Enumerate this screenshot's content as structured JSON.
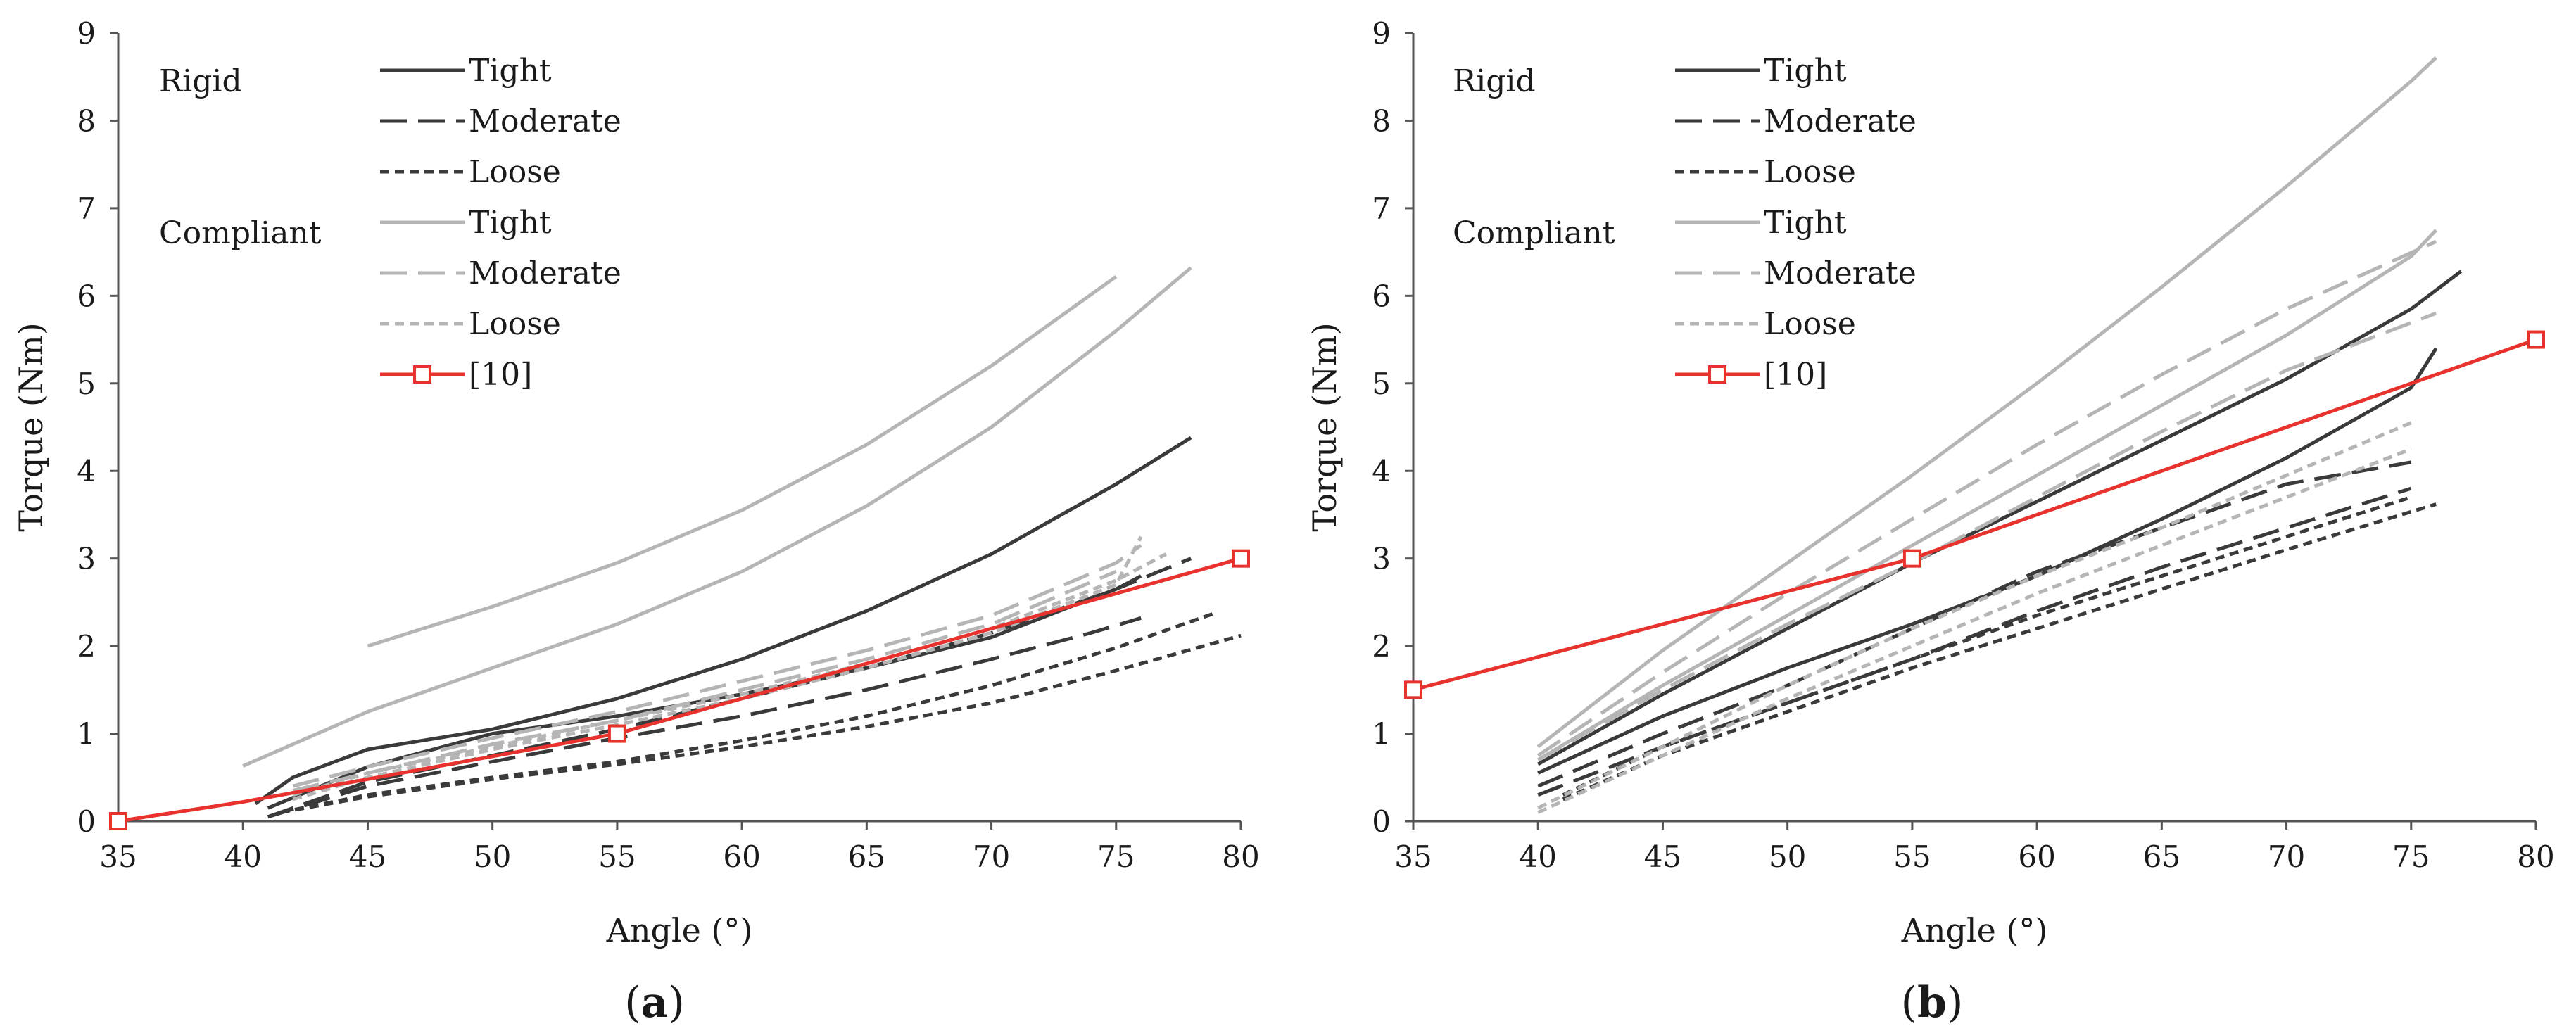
{
  "chart_data": [
    {
      "type": "line",
      "panel_label": "(a)",
      "panel_letter": "a",
      "xlabel": "Angle (°)",
      "ylabel": "Torque (Nm)",
      "xlim": [
        35,
        80
      ],
      "ylim": [
        0,
        9
      ],
      "xticks": [
        35,
        40,
        45,
        50,
        55,
        60,
        65,
        70,
        75,
        80
      ],
      "yticks": [
        0,
        1,
        2,
        3,
        4,
        5,
        6,
        7,
        8,
        9
      ],
      "grid": false,
      "legend": {
        "placement": "top-left",
        "group_labels": [
          "Rigid",
          "Compliant"
        ],
        "entries": [
          {
            "label": "Tight",
            "group": "Rigid",
            "color": "#333333",
            "dash": "solid"
          },
          {
            "label": "Moderate",
            "group": "Rigid",
            "color": "#333333",
            "dash": "long"
          },
          {
            "label": "Loose",
            "group": "Rigid",
            "color": "#333333",
            "dash": "short"
          },
          {
            "label": "Tight",
            "group": "Compliant",
            "color": "#b3b3b3",
            "dash": "solid"
          },
          {
            "label": "Moderate",
            "group": "Compliant",
            "color": "#b3b3b3",
            "dash": "long"
          },
          {
            "label": "Loose",
            "group": "Compliant",
            "color": "#b3b3b3",
            "dash": "short"
          },
          {
            "label": "[10]",
            "group": "",
            "color": "#e8322d",
            "dash": "solid",
            "marker": "square"
          }
        ]
      },
      "series": [
        {
          "name": "Rigid Tight 1",
          "style": "rigid-solid",
          "x": [
            40.5,
            42,
            45,
            50,
            55,
            60,
            65,
            70,
            75,
            78
          ],
          "y": [
            0.2,
            0.5,
            0.82,
            1.05,
            1.4,
            1.85,
            2.4,
            3.05,
            3.85,
            4.38
          ]
        },
        {
          "name": "Rigid Tight 2",
          "style": "rigid-solid",
          "x": [
            41,
            45,
            50,
            55,
            60,
            65,
            70,
            75,
            76
          ],
          "y": [
            0.15,
            0.62,
            1.0,
            1.2,
            1.45,
            1.75,
            2.1,
            2.65,
            2.8
          ]
        },
        {
          "name": "Rigid Moderate 1",
          "style": "rigid-long",
          "x": [
            41,
            45,
            50,
            55,
            60,
            65,
            70,
            75,
            78
          ],
          "y": [
            0.05,
            0.45,
            0.75,
            1.05,
            1.4,
            1.75,
            2.15,
            2.65,
            3.0
          ]
        },
        {
          "name": "Rigid Moderate 2",
          "style": "rigid-long",
          "x": [
            41,
            45,
            50,
            55,
            60,
            65,
            70,
            74,
            76
          ],
          "y": [
            0.05,
            0.4,
            0.68,
            0.95,
            1.2,
            1.5,
            1.85,
            2.15,
            2.32
          ]
        },
        {
          "name": "Rigid Loose 1",
          "style": "rigid-short",
          "x": [
            41.5,
            45,
            50,
            55,
            60,
            65,
            70,
            75,
            79
          ],
          "y": [
            0.1,
            0.3,
            0.5,
            0.68,
            0.92,
            1.2,
            1.55,
            1.98,
            2.38
          ]
        },
        {
          "name": "Rigid Loose 2",
          "style": "rigid-short",
          "x": [
            41.5,
            45,
            50,
            55,
            60,
            65,
            70,
            75,
            80
          ],
          "y": [
            0.1,
            0.28,
            0.48,
            0.65,
            0.85,
            1.08,
            1.35,
            1.72,
            2.12
          ]
        },
        {
          "name": "Compliant Tight 1",
          "style": "compliant-solid",
          "x": [
            45,
            50,
            55,
            60,
            65,
            70,
            75
          ],
          "y": [
            2.0,
            2.45,
            2.95,
            3.55,
            4.3,
            5.2,
            6.22
          ]
        },
        {
          "name": "Compliant Tight 2",
          "style": "compliant-solid",
          "x": [
            40,
            45,
            50,
            55,
            60,
            65,
            70,
            75,
            78
          ],
          "y": [
            0.63,
            1.25,
            1.75,
            2.25,
            2.85,
            3.6,
            4.5,
            5.6,
            6.32
          ]
        },
        {
          "name": "Compliant Moderate 1",
          "style": "compliant-long",
          "x": [
            42,
            45,
            50,
            55,
            60,
            65,
            70,
            75,
            76
          ],
          "y": [
            0.4,
            0.62,
            0.95,
            1.25,
            1.6,
            1.95,
            2.35,
            2.95,
            3.15
          ]
        },
        {
          "name": "Compliant Moderate 2",
          "style": "compliant-long",
          "x": [
            42,
            45,
            50,
            55,
            60,
            65,
            70,
            75
          ],
          "y": [
            0.35,
            0.55,
            0.88,
            1.15,
            1.5,
            1.85,
            2.25,
            2.85
          ]
        },
        {
          "name": "Compliant Loose 1",
          "style": "compliant-short",
          "x": [
            42,
            45,
            50,
            55,
            60,
            65,
            70,
            75,
            77
          ],
          "y": [
            0.3,
            0.55,
            0.85,
            1.15,
            1.45,
            1.8,
            2.2,
            2.75,
            3.05
          ]
        },
        {
          "name": "Compliant Loose 2",
          "style": "compliant-short",
          "x": [
            42,
            45,
            50,
            55,
            60,
            65,
            70,
            75,
            76
          ],
          "y": [
            0.25,
            0.5,
            0.82,
            1.1,
            1.4,
            1.75,
            2.15,
            2.7,
            3.25
          ]
        },
        {
          "name": "[10]",
          "style": "ref",
          "x": [
            35,
            40,
            55,
            80
          ],
          "y": [
            0,
            0.22,
            1.0,
            3.0
          ],
          "markers": [
            35,
            55,
            80
          ]
        }
      ]
    },
    {
      "type": "line",
      "panel_label": "(b)",
      "panel_letter": "b",
      "xlabel": "Angle (°)",
      "ylabel": "Torque (Nm)",
      "xlim": [
        35,
        80
      ],
      "ylim": [
        0,
        9
      ],
      "xticks": [
        35,
        40,
        45,
        50,
        55,
        60,
        65,
        70,
        75,
        80
      ],
      "yticks": [
        0,
        1,
        2,
        3,
        4,
        5,
        6,
        7,
        8,
        9
      ],
      "grid": false,
      "legend": {
        "placement": "top-left",
        "group_labels": [
          "Rigid",
          "Compliant"
        ],
        "entries": [
          {
            "label": "Tight",
            "group": "Rigid",
            "color": "#333333",
            "dash": "solid"
          },
          {
            "label": "Moderate",
            "group": "Rigid",
            "color": "#333333",
            "dash": "long"
          },
          {
            "label": "Loose",
            "group": "Rigid",
            "color": "#333333",
            "dash": "short"
          },
          {
            "label": "Tight",
            "group": "Compliant",
            "color": "#b3b3b3",
            "dash": "solid"
          },
          {
            "label": "Moderate",
            "group": "Compliant",
            "color": "#b3b3b3",
            "dash": "long"
          },
          {
            "label": "Loose",
            "group": "Compliant",
            "color": "#b3b3b3",
            "dash": "short"
          },
          {
            "label": "[10]",
            "group": "",
            "color": "#e8322d",
            "dash": "solid",
            "marker": "square"
          }
        ]
      },
      "series": [
        {
          "name": "Rigid Tight 1",
          "style": "rigid-solid",
          "x": [
            40,
            45,
            50,
            55,
            60,
            65,
            70,
            75,
            77
          ],
          "y": [
            0.65,
            1.45,
            2.2,
            2.95,
            3.65,
            4.35,
            5.05,
            5.85,
            6.28
          ]
        },
        {
          "name": "Rigid Tight 2",
          "style": "rigid-solid",
          "x": [
            40,
            45,
            50,
            55,
            60,
            65,
            70,
            75,
            76
          ],
          "y": [
            0.55,
            1.2,
            1.75,
            2.25,
            2.8,
            3.45,
            4.15,
            4.95,
            5.4
          ]
        },
        {
          "name": "Rigid Moderate 1",
          "style": "rigid-long",
          "x": [
            40,
            45,
            50,
            55,
            60,
            65,
            70,
            75
          ],
          "y": [
            0.4,
            1.0,
            1.55,
            2.2,
            2.85,
            3.35,
            3.85,
            4.1
          ]
        },
        {
          "name": "Rigid Moderate 2",
          "style": "rigid-long",
          "x": [
            40,
            45,
            50,
            55,
            60,
            65,
            70,
            75
          ],
          "y": [
            0.3,
            0.85,
            1.35,
            1.85,
            2.4,
            2.9,
            3.35,
            3.8
          ]
        },
        {
          "name": "Rigid Loose 1",
          "style": "rigid-short",
          "x": [
            41,
            45,
            50,
            55,
            60,
            65,
            70,
            75
          ],
          "y": [
            0.3,
            0.85,
            1.35,
            1.85,
            2.35,
            2.8,
            3.25,
            3.7
          ]
        },
        {
          "name": "Rigid Loose 2",
          "style": "rigid-short",
          "x": [
            41,
            45,
            50,
            55,
            60,
            65,
            70,
            76
          ],
          "y": [
            0.25,
            0.75,
            1.25,
            1.75,
            2.2,
            2.65,
            3.1,
            3.62
          ]
        },
        {
          "name": "Compliant Tight 1",
          "style": "compliant-solid",
          "x": [
            40,
            45,
            50,
            55,
            60,
            65,
            70,
            75,
            76
          ],
          "y": [
            0.85,
            1.95,
            2.95,
            3.95,
            5.0,
            6.1,
            7.25,
            8.45,
            8.72
          ]
        },
        {
          "name": "Compliant Tight 2",
          "style": "compliant-solid",
          "x": [
            40,
            45,
            50,
            55,
            60,
            65,
            70,
            75,
            76
          ],
          "y": [
            0.7,
            1.55,
            2.35,
            3.15,
            3.95,
            4.75,
            5.55,
            6.45,
            6.75
          ]
        },
        {
          "name": "Compliant Moderate 1",
          "style": "compliant-long",
          "x": [
            40,
            45,
            50,
            55,
            60,
            65,
            70,
            76
          ],
          "y": [
            0.75,
            1.7,
            2.6,
            3.45,
            4.3,
            5.1,
            5.85,
            6.62
          ]
        },
        {
          "name": "Compliant Moderate 2",
          "style": "compliant-long",
          "x": [
            40,
            45,
            50,
            55,
            60,
            65,
            70,
            76
          ],
          "y": [
            0.7,
            1.5,
            2.25,
            2.95,
            3.7,
            4.45,
            5.15,
            5.8
          ]
        },
        {
          "name": "Compliant Loose 1",
          "style": "compliant-short",
          "x": [
            40,
            45,
            50,
            55,
            60,
            65,
            70,
            75
          ],
          "y": [
            0.15,
            0.85,
            1.55,
            2.2,
            2.8,
            3.35,
            3.95,
            4.55
          ]
        },
        {
          "name": "Compliant Loose 2",
          "style": "compliant-short",
          "x": [
            40,
            45,
            50,
            55,
            60,
            65,
            70,
            75
          ],
          "y": [
            0.1,
            0.75,
            1.4,
            2.0,
            2.6,
            3.15,
            3.7,
            4.25
          ]
        },
        {
          "name": "[10]",
          "style": "ref",
          "x": [
            35,
            55,
            80
          ],
          "y": [
            1.5,
            3.0,
            5.5
          ],
          "markers": [
            35,
            55,
            80
          ]
        }
      ]
    }
  ],
  "styles": {
    "rigid-solid": {
      "color": "#3a3a3a",
      "dash": "solid"
    },
    "rigid-long": {
      "color": "#3a3a3a",
      "dash": "long"
    },
    "rigid-short": {
      "color": "#3a3a3a",
      "dash": "short"
    },
    "compliant-solid": {
      "color": "#b5b5b5",
      "dash": "solid"
    },
    "compliant-long": {
      "color": "#b5b5b5",
      "dash": "long"
    },
    "compliant-short": {
      "color": "#b5b5b5",
      "dash": "short"
    },
    "ref": {
      "color": "#e8322d",
      "dash": "solid"
    }
  }
}
